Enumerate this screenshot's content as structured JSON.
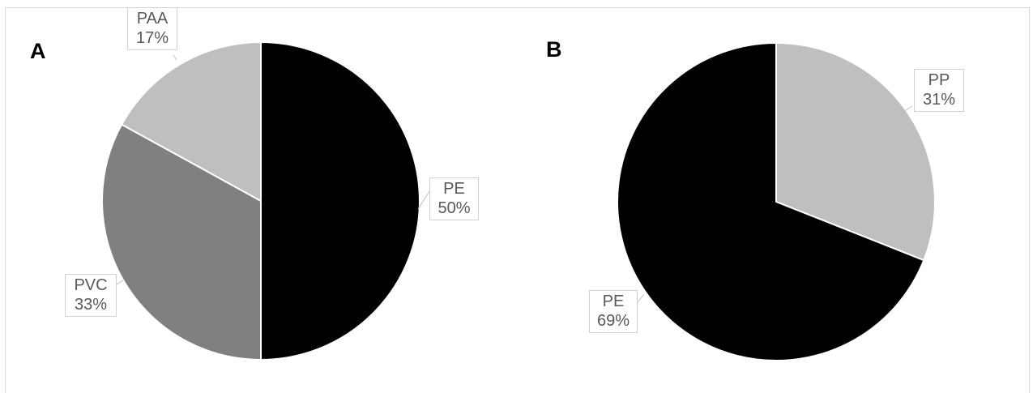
{
  "chart_data": [
    {
      "type": "pie",
      "panel_label": "A",
      "slices": [
        {
          "label": "PE",
          "value": 50,
          "percent_label": "50%",
          "color": "#000000"
        },
        {
          "label": "PVC",
          "value": 33,
          "percent_label": "33%",
          "color": "#808080"
        },
        {
          "label": "PAA",
          "value": 17,
          "percent_label": "17%",
          "color": "#bfbfbf"
        }
      ],
      "start_angle": "12 o'clock",
      "direction": "clockwise",
      "legend": "none",
      "data_labels": "callouts"
    },
    {
      "type": "pie",
      "panel_label": "B",
      "slices": [
        {
          "label": "PP",
          "value": 31,
          "percent_label": "31%",
          "color": "#bfbfbf"
        },
        {
          "label": "PE",
          "value": 69,
          "percent_label": "69%",
          "color": "#000000"
        }
      ],
      "start_angle": "12 o'clock",
      "direction": "clockwise",
      "legend": "none",
      "data_labels": "callouts"
    }
  ]
}
